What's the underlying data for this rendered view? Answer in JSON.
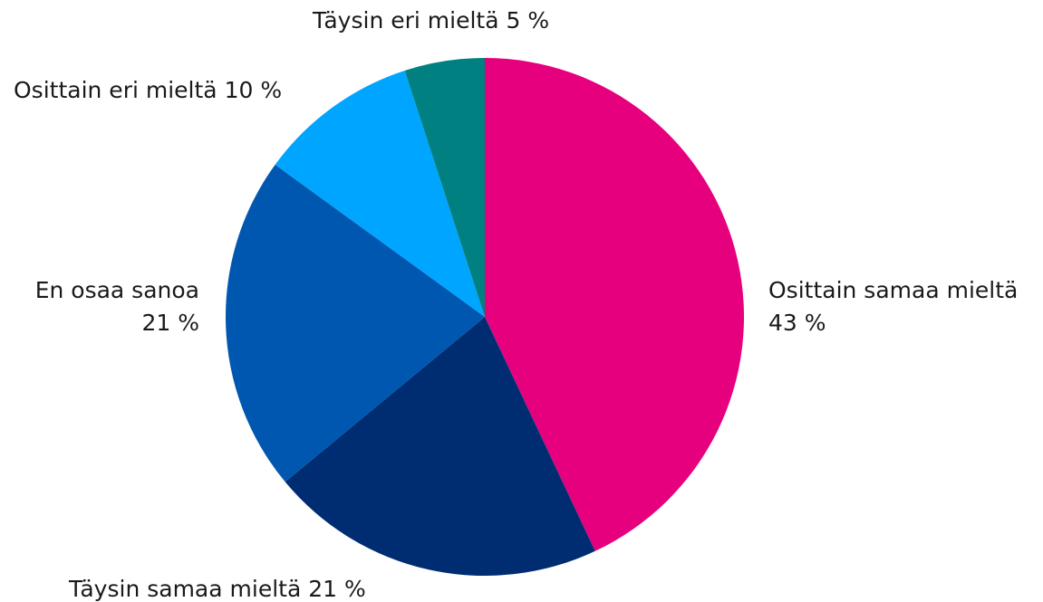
{
  "chart_data": {
    "type": "pie",
    "categories": [
      "Osittain samaa mieltä",
      "Täysin samaa mieltä",
      "En osaa sanoa",
      "Osittain eri mieltä",
      "Täysin eri mieltä"
    ],
    "values": [
      43,
      21,
      21,
      10,
      5
    ],
    "value_labels": [
      "43 %",
      "21 %",
      "21 %",
      "10 %",
      "5 %"
    ],
    "colors": [
      "#e6007e",
      "#002d72",
      "#0057b0",
      "#00a5ff",
      "#008080"
    ]
  }
}
